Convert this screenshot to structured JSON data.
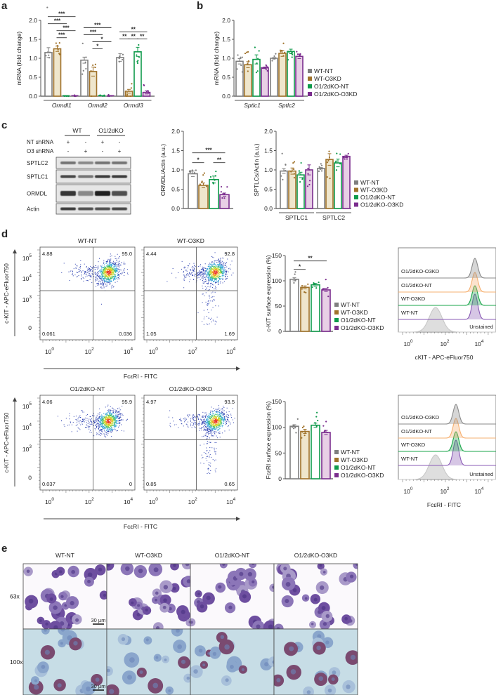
{
  "panel_labels": {
    "a": "a",
    "b": "b",
    "c": "c",
    "d": "d",
    "e": "e"
  },
  "groups": [
    "WT-NT",
    "WT-O3KD",
    "O1/2dKO-NT",
    "O1/2dKO-O3KD"
  ],
  "colors": {
    "stroke": [
      "#7f7f7f",
      "#a0722a",
      "#0f9a4b",
      "#7b2d8e"
    ],
    "fill": [
      "#ffffff",
      "#efe6cc",
      "#ffffff",
      "#e8cfe6"
    ],
    "hist": [
      "#8a8a8a",
      "#f6b070",
      "#1aa54a",
      "#8a5bb5"
    ],
    "unstained": "#c8c8c8"
  },
  "chart_data": [
    {
      "id": "a",
      "type": "bar",
      "ylabel": "mRNA (fold change)",
      "ylim": [
        0,
        2
      ],
      "yticks": [
        "0.0",
        "0.5",
        "1.0",
        "1.5",
        "2.0"
      ],
      "categories": [
        "Ormdl1",
        "Ormdl2",
        "Ormdl3"
      ],
      "series": [
        {
          "name": "WT-NT",
          "values": [
            1.15,
            0.95,
            1.02
          ],
          "sem": [
            0.13,
            0.08,
            0.1
          ]
        },
        {
          "name": "WT-O3KD",
          "values": [
            1.25,
            0.65,
            0.13
          ],
          "sem": [
            0.07,
            0.12,
            0.05
          ]
        },
        {
          "name": "O1/2dKO-NT",
          "values": [
            0.0,
            0.0,
            1.17
          ],
          "sem": [
            0,
            0,
            0.12
          ]
        },
        {
          "name": "O1/2dKO-O3KD",
          "values": [
            0.0,
            0.0,
            0.1
          ],
          "sem": [
            0,
            0,
            0.04
          ]
        }
      ],
      "significance": [
        {
          "category": 0,
          "from": 0,
          "to": 3,
          "tier": 3,
          "label": "***"
        },
        {
          "category": 0,
          "from": 0,
          "to": 2,
          "tier": 2,
          "label": "***"
        },
        {
          "category": 0,
          "from": 1,
          "to": 3,
          "tier": 1,
          "label": "***"
        },
        {
          "category": 0,
          "from": 1,
          "to": 2,
          "tier": 0,
          "label": "***"
        },
        {
          "category": 1,
          "from": 0,
          "to": 3,
          "tier": 3,
          "label": "***"
        },
        {
          "category": 1,
          "from": 0,
          "to": 2,
          "tier": 2,
          "label": "***"
        },
        {
          "category": 1,
          "from": 1,
          "to": 3,
          "tier": 1,
          "label": "*"
        },
        {
          "category": 1,
          "from": 1,
          "to": 2,
          "tier": 0,
          "label": "*"
        },
        {
          "category": 2,
          "from": 0,
          "to": 3,
          "tier": 1,
          "label": "**"
        },
        {
          "category": 2,
          "from": 0,
          "to": 1,
          "tier": 0,
          "label": "**"
        },
        {
          "category": 2,
          "from": 1,
          "to": 2,
          "tier": 0,
          "label": "**"
        },
        {
          "category": 2,
          "from": 2,
          "to": 3,
          "tier": 0,
          "label": "**"
        }
      ]
    },
    {
      "id": "b",
      "type": "bar",
      "ylabel": "mRNA (fold change)",
      "ylim": [
        0,
        2
      ],
      "yticks": [
        "0.0",
        "0.5",
        "1.0",
        "1.5",
        "2.0"
      ],
      "categories": [
        "Sptlc1",
        "Sptlc2"
      ],
      "series": [
        {
          "name": "WT-NT",
          "values": [
            0.92,
            1.0
          ],
          "sem": [
            0.07,
            0.02
          ]
        },
        {
          "name": "WT-O3KD",
          "values": [
            0.83,
            1.13
          ],
          "sem": [
            0.08,
            0.08
          ]
        },
        {
          "name": "O1/2dKO-NT",
          "values": [
            0.97,
            1.18
          ],
          "sem": [
            0.12,
            0.06
          ]
        },
        {
          "name": "O1/2dKO-O3KD",
          "values": [
            0.75,
            1.05
          ],
          "sem": [
            0.02,
            0.06
          ]
        }
      ],
      "significance": []
    },
    {
      "id": "c-ormdl",
      "type": "bar",
      "ylabel": "ORMDL/Actin (a.u.)",
      "ylim": [
        0,
        2
      ],
      "yticks": [
        "0.0",
        "0.5",
        "1.0",
        "1.5",
        "2.0"
      ],
      "series": [
        {
          "name": "WT-NT",
          "values": [
            0.9
          ],
          "sem": [
            0.07
          ]
        },
        {
          "name": "WT-O3KD",
          "values": [
            0.6
          ],
          "sem": [
            0.06
          ]
        },
        {
          "name": "O1/2dKO-NT",
          "values": [
            0.75
          ],
          "sem": [
            0.09
          ]
        },
        {
          "name": "O1/2dKO-O3KD",
          "values": [
            0.36
          ],
          "sem": [
            0.04
          ]
        }
      ],
      "significance": [
        {
          "category": 0,
          "from": 0,
          "to": 3,
          "tier": 1,
          "label": "***"
        },
        {
          "category": 0,
          "from": 0,
          "to": 1,
          "tier": 0,
          "label": "*"
        },
        {
          "category": 0,
          "from": 2,
          "to": 3,
          "tier": 0,
          "label": "**"
        }
      ]
    },
    {
      "id": "c-sptlc",
      "type": "bar",
      "ylabel": "SPTLCs/Actin (a.u.)",
      "ylim": [
        0,
        2
      ],
      "yticks": [
        "0.0",
        "0.5",
        "1.0",
        "1.5",
        "2.0"
      ],
      "categories": [
        "SPTLC1",
        "SPTLC2"
      ],
      "series": [
        {
          "name": "WT-NT",
          "values": [
            0.97,
            1.04
          ],
          "sem": [
            0.06,
            0.02
          ]
        },
        {
          "name": "WT-O3KD",
          "values": [
            0.97,
            1.27
          ],
          "sem": [
            0.08,
            0.15
          ]
        },
        {
          "name": "O1/2dKO-NT",
          "values": [
            0.87,
            1.18
          ],
          "sem": [
            0.07,
            0.1
          ]
        },
        {
          "name": "O1/2dKO-O3KD",
          "values": [
            1.0,
            1.35
          ],
          "sem": [
            0.13,
            0.03
          ]
        }
      ],
      "significance": []
    },
    {
      "id": "d-ckit",
      "type": "bar",
      "ylabel": "c-KIT surface expression (%)",
      "ylim": [
        0,
        150
      ],
      "yticks": [
        "0",
        "50",
        "100",
        "150"
      ],
      "series": [
        {
          "name": "WT-NT",
          "values": [
            103
          ],
          "sem": [
            3
          ]
        },
        {
          "name": "WT-O3KD",
          "values": [
            87
          ],
          "sem": [
            3
          ]
        },
        {
          "name": "O1/2dKO-NT",
          "values": [
            92
          ],
          "sem": [
            3
          ]
        },
        {
          "name": "O1/2dKO-O3KD",
          "values": [
            82
          ],
          "sem": [
            3
          ]
        }
      ],
      "significance": [
        {
          "category": 0,
          "from": 0,
          "to": 3,
          "tier": 1,
          "label": "**"
        },
        {
          "category": 0,
          "from": 0,
          "to": 1,
          "tier": 0,
          "label": "*"
        }
      ]
    },
    {
      "id": "d-fceri",
      "type": "bar",
      "ylabel": "FcεRI surface expression (%)",
      "ylim": [
        0,
        150
      ],
      "yticks": [
        "0",
        "50",
        "100",
        "150"
      ],
      "series": [
        {
          "name": "WT-NT",
          "values": [
            102
          ],
          "sem": [
            3
          ]
        },
        {
          "name": "WT-O3KD",
          "values": [
            92
          ],
          "sem": [
            4
          ]
        },
        {
          "name": "O1/2dKO-NT",
          "values": [
            104
          ],
          "sem": [
            4
          ]
        },
        {
          "name": "O1/2dKO-O3KD",
          "values": [
            90
          ],
          "sem": [
            4
          ]
        }
      ],
      "significance": []
    }
  ],
  "blot": {
    "conditions": [
      "WT",
      "O1/2dKO"
    ],
    "rows": [
      {
        "label": "NT shRNA",
        "values": [
          "+",
          "-",
          "+",
          "-"
        ]
      },
      {
        "label": "O3 shRNA",
        "values": [
          "-",
          "+",
          "-",
          "+"
        ]
      }
    ],
    "bands": [
      {
        "label": "SPTLC2",
        "intensity": [
          0.55,
          0.45,
          0.55,
          0.55
        ]
      },
      {
        "label": "SPTLC1",
        "intensity": [
          0.75,
          0.55,
          0.8,
          0.8
        ]
      },
      {
        "label": "ORMDL",
        "intensity": [
          0.85,
          0.45,
          0.95,
          0.7
        ]
      },
      {
        "label": "Actin",
        "intensity": [
          0.8,
          0.7,
          0.7,
          0.75
        ]
      }
    ]
  },
  "flow": {
    "yaxis": "c-KIT - APC-eFluor750",
    "xaxis": "FcεRI - FITC",
    "yticks": [
      {
        "b": "10",
        "e": "5"
      },
      {
        "b": "10",
        "e": "4"
      },
      {
        "b": "10",
        "e": "3"
      },
      {
        "b": "0",
        "e": ""
      }
    ],
    "xticks": [
      {
        "b": "10",
        "e": "0"
      },
      {
        "b": "10",
        "e": "2"
      },
      {
        "b": "10",
        "e": "4"
      }
    ],
    "plots": [
      {
        "title": "WT-NT",
        "quadrants": [
          "4.88",
          "95.0",
          "0.061",
          "0.036"
        ]
      },
      {
        "title": "WT-O3KD",
        "quadrants": [
          "4.44",
          "92.8",
          "1.05",
          "1.69"
        ]
      },
      {
        "title": "O1/2dKO-NT",
        "quadrants": [
          "4.06",
          "95.9",
          "0.037",
          "0"
        ]
      },
      {
        "title": "O1/2dKO-O3KD",
        "quadrants": [
          "4.97",
          "93.5",
          "0.85",
          "0.65"
        ]
      }
    ]
  },
  "histograms": [
    {
      "xlabel": "cKIT - APC-eFluor750",
      "rows": [
        "O1/2dKO-O3KD",
        "O1/2dKO-NT",
        "WT-O3KD",
        "WT-NT"
      ],
      "unstained": "Unstained",
      "xticks": [
        {
          "b": "10",
          "e": "0"
        },
        {
          "b": "10",
          "e": "2"
        },
        {
          "b": "10",
          "e": "4"
        }
      ]
    },
    {
      "xlabel": "FcεRI - FITC",
      "rows": [
        "O1/2dKO-O3KD",
        "O1/2dKO-NT",
        "WT-O3KD",
        "WT-NT"
      ],
      "unstained": "Unstained",
      "xticks": [
        {
          "b": "10",
          "e": "0"
        },
        {
          "b": "10",
          "e": "2"
        },
        {
          "b": "10",
          "e": "4"
        }
      ]
    }
  ],
  "micrographs": {
    "columns": [
      "WT-NT",
      "WT-O3KD",
      "O1/2dKO-NT",
      "O1/2dKO-O3KD"
    ],
    "rows": [
      "63x",
      "100x"
    ],
    "scale_bar": "30 µm"
  }
}
